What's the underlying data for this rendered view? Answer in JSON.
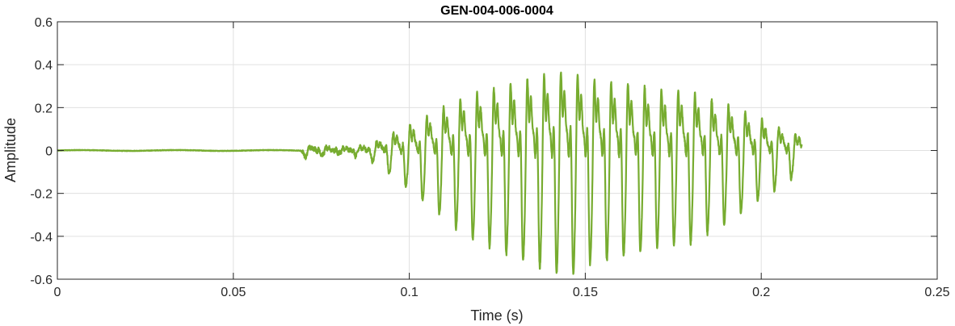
{
  "chart_data": {
    "type": "line",
    "title": "GEN-004-006-0004",
    "xlabel": "Time (s)",
    "ylabel": "Amplitude",
    "xlim": [
      0,
      0.25
    ],
    "ylim": [
      -0.6,
      0.6
    ],
    "x_ticks": [
      0,
      0.05,
      0.1,
      0.15,
      0.2,
      0.25
    ],
    "x_tick_labels": [
      "0",
      "0.05",
      "0.1",
      "0.15",
      "0.2",
      "0.25"
    ],
    "y_ticks": [
      -0.6,
      -0.4,
      -0.2,
      0,
      0.2,
      0.4,
      0.6
    ],
    "y_tick_labels": [
      "-0.6",
      "-0.4",
      "-0.2",
      "0",
      "0.2",
      "0.4",
      "0.6"
    ],
    "grid": true,
    "colors": {
      "series": "#77ac30",
      "grid": "#e0e0e0",
      "axis": "#262626"
    },
    "series": [
      {
        "signal_start": 0,
        "signal_end": 0.2115,
        "onset": 0.07,
        "fundamental_hz": 210,
        "envelope": [
          [
            0,
            0.003
          ],
          [
            0.069,
            0.003
          ],
          [
            0.07,
            0.03
          ],
          [
            0.08,
            0.012
          ],
          [
            0.088,
            0.03
          ],
          [
            0.092,
            0.07
          ],
          [
            0.098,
            0.14
          ],
          [
            0.105,
            0.22
          ],
          [
            0.115,
            0.34
          ],
          [
            0.125,
            0.41
          ],
          [
            0.135,
            0.47
          ],
          [
            0.145,
            0.52
          ],
          [
            0.15,
            0.47
          ],
          [
            0.16,
            0.44
          ],
          [
            0.17,
            0.4
          ],
          [
            0.18,
            0.38
          ],
          [
            0.19,
            0.3
          ],
          [
            0.2,
            0.2
          ],
          [
            0.21,
            0.1
          ],
          [
            0.2115,
            0.12
          ]
        ]
      }
    ]
  }
}
